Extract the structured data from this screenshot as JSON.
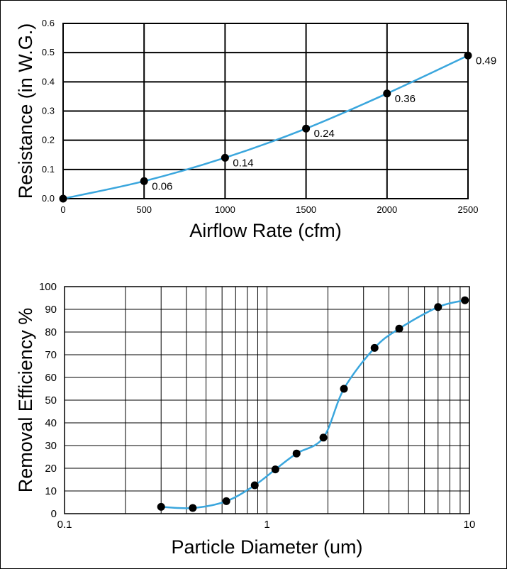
{
  "chart_data": [
    {
      "type": "line",
      "xlabel": "Airflow Rate (cfm)",
      "ylabel": "Resistance (in W.G.)",
      "xlim": [
        0,
        2500
      ],
      "ylim": [
        0,
        0.6
      ],
      "x_ticks": [
        "0",
        "500",
        "1000",
        "1500",
        "2000",
        "2500"
      ],
      "y_ticks": [
        "0.0",
        "0.1",
        "0.2",
        "0.3",
        "0.4",
        "0.5",
        "0.6"
      ],
      "grid": true,
      "line_color": "#3aa6dd",
      "series": [
        {
          "x": [
            0,
            500,
            1000,
            1500,
            2000,
            2500
          ],
          "y": [
            0,
            0.06,
            0.14,
            0.24,
            0.36,
            0.49
          ],
          "labels": [
            "",
            "0.06",
            "0.14",
            "0.24",
            "0.36",
            "0.49"
          ]
        }
      ]
    },
    {
      "type": "line",
      "xscale": "log",
      "xlabel": "Particle Diameter (um)",
      "ylabel": "Removal Efficiency %",
      "xlim": [
        0.1,
        10
      ],
      "ylim": [
        0,
        100
      ],
      "x_ticks": [
        "0.1",
        "1",
        "10"
      ],
      "y_ticks": [
        "0",
        "10",
        "20",
        "30",
        "40",
        "50",
        "60",
        "70",
        "80",
        "90",
        "100"
      ],
      "grid": true,
      "line_color": "#3aa6dd",
      "series": [
        {
          "x": [
            0.3,
            0.43,
            0.63,
            0.87,
            1.1,
            1.4,
            1.9,
            2.4,
            3.4,
            4.5,
            7.0,
            9.5
          ],
          "y": [
            3,
            2.5,
            5.5,
            12.5,
            19.5,
            26.5,
            33.5,
            55,
            73,
            81.5,
            91,
            94
          ]
        }
      ]
    }
  ]
}
